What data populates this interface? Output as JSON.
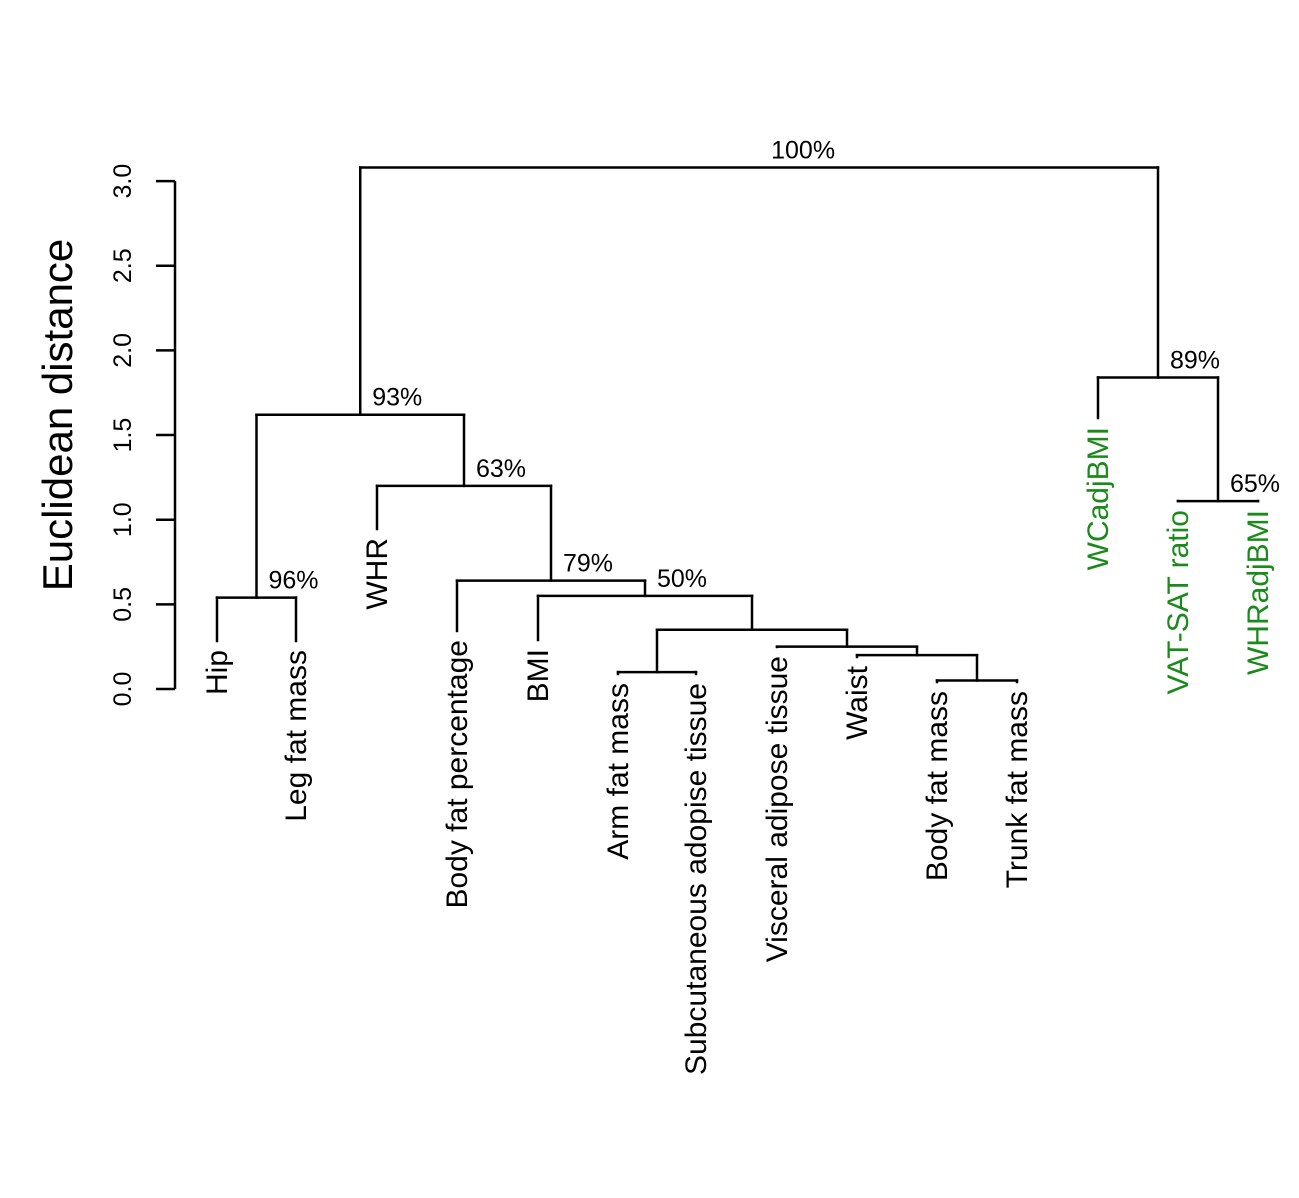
{
  "chart_data": {
    "type": "dendrogram",
    "title": "",
    "ylabel": "Euclidean distance",
    "ylim": [
      0,
      3.0
    ],
    "yticks": [
      "0.0",
      "0.5",
      "1.0",
      "1.5",
      "2.0",
      "2.5",
      "3.0"
    ],
    "leaves": [
      {
        "label": "Hip",
        "group": "primary"
      },
      {
        "label": "Leg fat mass",
        "group": "primary"
      },
      {
        "label": "WHR",
        "group": "primary"
      },
      {
        "label": "Body fat percentage",
        "group": "primary"
      },
      {
        "label": "BMI",
        "group": "primary"
      },
      {
        "label": "Arm fat mass",
        "group": "primary"
      },
      {
        "label": "Subcutaneous adopise tissue",
        "group": "primary"
      },
      {
        "label": "Visceral adipose tissue",
        "group": "primary"
      },
      {
        "label": "Waist",
        "group": "primary"
      },
      {
        "label": "Body fat mass",
        "group": "primary"
      },
      {
        "label": "Trunk fat mass",
        "group": "primary"
      },
      {
        "label": "WCadjBMI",
        "group": "adjusted"
      },
      {
        "label": "VAT-SAT ratio",
        "group": "adjusted"
      },
      {
        "label": "WHRadjBMI",
        "group": "adjusted"
      }
    ],
    "merges": [
      {
        "id": "m1",
        "left": "L9",
        "right": "L10",
        "height": 0.05,
        "support": ""
      },
      {
        "id": "m2",
        "left": "L8",
        "right": "m1",
        "height": 0.2,
        "support": ""
      },
      {
        "id": "m3",
        "left": "L7",
        "right": "m2",
        "height": 0.25,
        "support": ""
      },
      {
        "id": "m4",
        "left": "L5",
        "right": "L6",
        "height": 0.1,
        "support": ""
      },
      {
        "id": "m5",
        "left": "m4",
        "right": "m3",
        "height": 0.35,
        "support": ""
      },
      {
        "id": "m6",
        "left": "L4",
        "right": "m5",
        "height": 0.55,
        "support": "50%"
      },
      {
        "id": "m7",
        "left": "L3",
        "right": "m6",
        "height": 0.64,
        "support": "79%"
      },
      {
        "id": "m8",
        "left": "L2",
        "right": "m7",
        "height": 1.2,
        "support": "63%"
      },
      {
        "id": "m9",
        "left": "L0",
        "right": "L1",
        "height": 0.54,
        "support": "96%"
      },
      {
        "id": "m10",
        "left": "m9",
        "right": "m8",
        "height": 1.62,
        "support": "93%"
      },
      {
        "id": "m11",
        "left": "L12",
        "right": "L13",
        "height": 1.11,
        "support": "65%"
      },
      {
        "id": "m12",
        "left": "L11",
        "right": "m11",
        "height": 1.84,
        "support": "89%"
      },
      {
        "id": "m13",
        "left": "m10",
        "right": "m12",
        "height": 3.08,
        "support": "100%"
      }
    ],
    "colors": {
      "line": "#000000",
      "primary": "#000000",
      "adjusted": "#1a8a1a"
    }
  }
}
